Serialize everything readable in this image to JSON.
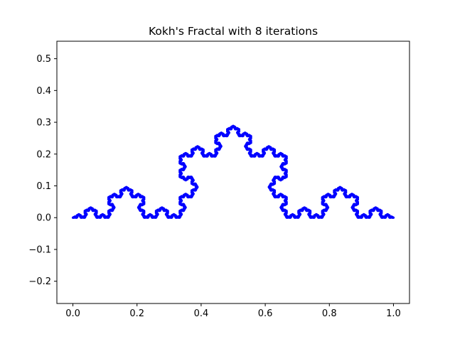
{
  "chart_data": {
    "type": "line",
    "title": "Kokh's Fractal with 8 iterations",
    "xlabel": "",
    "ylabel": "",
    "xlim": [
      -0.05,
      1.05
    ],
    "ylim": [
      -0.27,
      0.555
    ],
    "x_ticks": [
      0.0,
      0.2,
      0.4,
      0.6,
      0.8,
      1.0
    ],
    "x_tick_labels": [
      "0.0",
      "0.2",
      "0.4",
      "0.6",
      "0.8",
      "1.0"
    ],
    "y_ticks": [
      -0.2,
      -0.1,
      0.0,
      0.1,
      0.2,
      0.3,
      0.4,
      0.5
    ],
    "y_tick_labels": [
      "−0.2",
      "−0.1",
      "0.0",
      "0.1",
      "0.2",
      "0.3",
      "0.4",
      "0.5"
    ],
    "grid": false,
    "legend": "none",
    "series": [
      {
        "curve": "koch",
        "iterations": 8,
        "start": [
          0.0,
          0.0
        ],
        "end": [
          1.0,
          0.0
        ],
        "color": "#0000ff"
      }
    ]
  }
}
